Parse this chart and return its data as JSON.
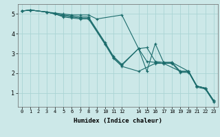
{
  "title": "",
  "xlabel": "Humidex (Indice chaleur)",
  "bg_color": "#cce8e8",
  "line_color": "#1a6b6b",
  "grid_color": "#aad4d4",
  "xlim": [
    -0.5,
    23.5
  ],
  "ylim": [
    0.3,
    5.5
  ],
  "xticks": [
    0,
    1,
    2,
    3,
    4,
    5,
    6,
    7,
    8,
    9,
    10,
    11,
    12,
    14,
    15,
    16,
    17,
    18,
    19,
    20,
    21,
    22,
    23
  ],
  "yticks": [
    1,
    2,
    3,
    4,
    5
  ],
  "lines": [
    {
      "x": [
        0,
        1,
        3,
        4,
        5,
        6,
        7,
        8,
        9,
        12,
        14,
        15,
        16,
        17,
        18,
        19,
        20,
        21,
        22,
        23
      ],
      "y": [
        5.15,
        5.2,
        5.1,
        5.05,
        5.0,
        4.95,
        4.95,
        4.95,
        4.75,
        4.95,
        3.25,
        2.1,
        3.5,
        2.55,
        2.55,
        2.1,
        2.1,
        1.35,
        1.25,
        0.62
      ]
    },
    {
      "x": [
        0,
        1,
        3,
        4,
        5,
        6,
        7,
        8,
        10,
        11,
        12,
        14,
        15,
        16,
        17,
        18,
        20,
        21,
        22,
        23
      ],
      "y": [
        5.15,
        5.2,
        5.1,
        5.0,
        4.95,
        4.9,
        4.85,
        4.85,
        3.55,
        2.85,
        2.45,
        3.25,
        3.3,
        2.6,
        2.55,
        2.55,
        2.1,
        1.35,
        1.25,
        0.62
      ]
    },
    {
      "x": [
        0,
        1,
        3,
        4,
        5,
        6,
        7,
        8,
        10,
        11,
        12,
        14,
        15,
        16,
        17,
        19,
        20,
        21,
        22,
        23
      ],
      "y": [
        5.15,
        5.2,
        5.1,
        5.0,
        4.9,
        4.85,
        4.8,
        4.8,
        3.5,
        2.8,
        2.4,
        3.25,
        2.6,
        2.55,
        2.5,
        2.1,
        2.1,
        1.35,
        1.25,
        0.62
      ]
    },
    {
      "x": [
        0,
        1,
        3,
        4,
        5,
        6,
        7,
        8,
        10,
        11,
        12,
        14,
        16,
        17,
        18,
        19,
        20,
        21,
        22,
        23
      ],
      "y": [
        5.15,
        5.2,
        5.1,
        5.0,
        4.85,
        4.8,
        4.75,
        4.75,
        3.45,
        2.75,
        2.35,
        2.1,
        2.5,
        2.5,
        2.5,
        2.05,
        2.05,
        1.3,
        1.2,
        0.55
      ]
    }
  ]
}
